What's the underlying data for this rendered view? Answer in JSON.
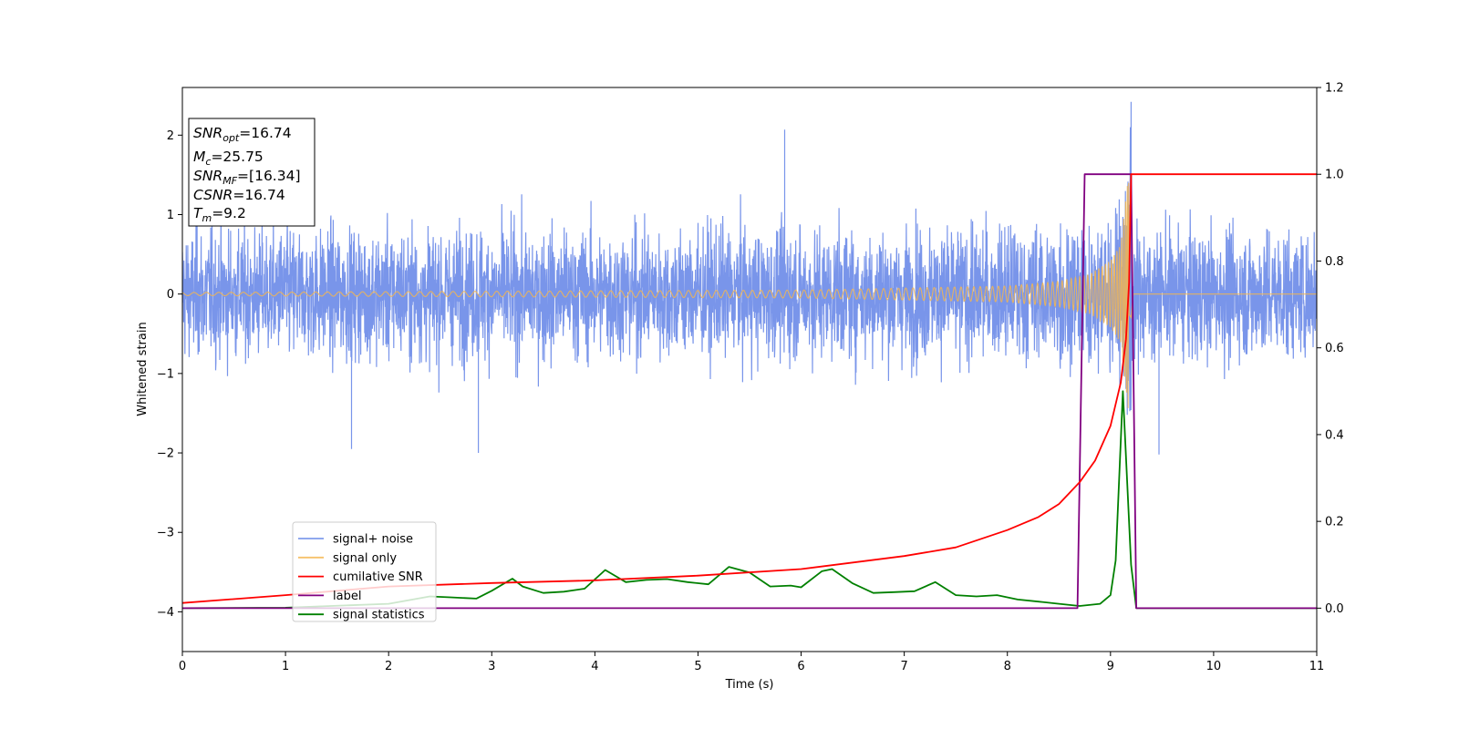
{
  "chart_data": {
    "type": "line",
    "xlabel": "Time (s)",
    "ylabel": "Whitened strain",
    "xlim": [
      0,
      11
    ],
    "ylim_left": [
      -4.5,
      2.6
    ],
    "ylim_right": [
      -0.1,
      1.2
    ],
    "x_ticks": [
      "0",
      "1",
      "2",
      "3",
      "4",
      "5",
      "6",
      "7",
      "8",
      "9",
      "10",
      "11"
    ],
    "y_left_ticks": [
      "−4",
      "−3",
      "−2",
      "−1",
      "0",
      "1",
      "2"
    ],
    "y_right_ticks": [
      "0.0",
      "0.2",
      "0.4",
      "0.6",
      "0.8",
      "1.0",
      "1.2"
    ],
    "grid": false,
    "legend_position": "lower-left",
    "stats": {
      "snr_opt": {
        "sym": "SNR",
        "sub": "opt",
        "value": "=16.74"
      },
      "mc": {
        "sym": "M",
        "sub": "c",
        "value": "=25.75"
      },
      "snr_mf": {
        "sym": "SNR",
        "sub": "MF",
        "value": "=[16.34]"
      },
      "csnr": {
        "sym": "CSNR",
        "value": "=16.74"
      },
      "tm": {
        "sym": "T",
        "sub": "m",
        "value": "=9.2"
      }
    },
    "series": [
      {
        "name": "signal+ noise",
        "axis": "left",
        "color": "#6a8ae8",
        "style": "noise band, approx amplitude ±1.2 with spikes up to ~2.4 near t=9.2",
        "peaks": [
          {
            "x": 9.2,
            "y": 2.42
          },
          {
            "x": 5.84,
            "y": 2.07
          },
          {
            "x": 1.64,
            "y": -1.95
          },
          {
            "x": 2.87,
            "y": -2.0
          },
          {
            "x": 9.47,
            "y": -2.02
          }
        ]
      },
      {
        "name": "signal only",
        "axis": "left",
        "color": "#f5b64f",
        "style": "chirp, amplitude grows toward merger at t=9.2",
        "envelope": {
          "x": [
            0,
            6,
            8,
            8.5,
            8.8,
            9.0,
            9.1,
            9.2,
            9.22,
            11
          ],
          "y": [
            0.02,
            0.05,
            0.1,
            0.16,
            0.25,
            0.42,
            0.62,
            1.8,
            0,
            0
          ]
        }
      },
      {
        "name": "cumilative SNR",
        "axis": "right",
        "color": "#ff0000",
        "x": [
          0,
          1,
          2,
          3,
          4,
          5,
          6,
          7,
          7.5,
          8,
          8.3,
          8.5,
          8.7,
          8.85,
          9.0,
          9.1,
          9.15,
          9.18,
          9.2,
          11
        ],
        "y": [
          0.012,
          0.03,
          0.05,
          0.058,
          0.064,
          0.075,
          0.09,
          0.12,
          0.14,
          0.18,
          0.21,
          0.24,
          0.29,
          0.34,
          0.42,
          0.52,
          0.62,
          0.75,
          1.0,
          1.0
        ]
      },
      {
        "name": "label",
        "axis": "right",
        "color": "#800080",
        "x": [
          0,
          8.68,
          8.75,
          9.2,
          9.25,
          11
        ],
        "y": [
          0,
          0,
          1.0,
          1.0,
          0,
          0
        ]
      },
      {
        "name": "signal statistics",
        "axis": "right",
        "color": "#008000",
        "x": [
          0,
          1,
          2,
          2.4,
          2.6,
          2.85,
          3.0,
          3.2,
          3.3,
          3.5,
          3.7,
          3.9,
          4.1,
          4.3,
          4.5,
          4.7,
          4.9,
          5.1,
          5.3,
          5.5,
          5.7,
          5.9,
          6.0,
          6.2,
          6.3,
          6.5,
          6.7,
          6.9,
          7.1,
          7.3,
          7.5,
          7.7,
          7.9,
          8.1,
          8.3,
          8.5,
          8.7,
          8.9,
          9.0,
          9.05,
          9.12,
          9.2,
          9.25,
          11
        ],
        "y": [
          0,
          0.001,
          0.01,
          0.027,
          0.025,
          0.022,
          0.04,
          0.068,
          0.05,
          0.035,
          0.038,
          0.045,
          0.088,
          0.06,
          0.065,
          0.067,
          0.06,
          0.055,
          0.095,
          0.082,
          0.05,
          0.052,
          0.048,
          0.085,
          0.09,
          0.057,
          0.035,
          0.037,
          0.039,
          0.06,
          0.03,
          0.027,
          0.03,
          0.02,
          0.015,
          0.01,
          0.005,
          0.01,
          0.03,
          0.11,
          0.5,
          0.1,
          0,
          0
        ]
      }
    ]
  }
}
